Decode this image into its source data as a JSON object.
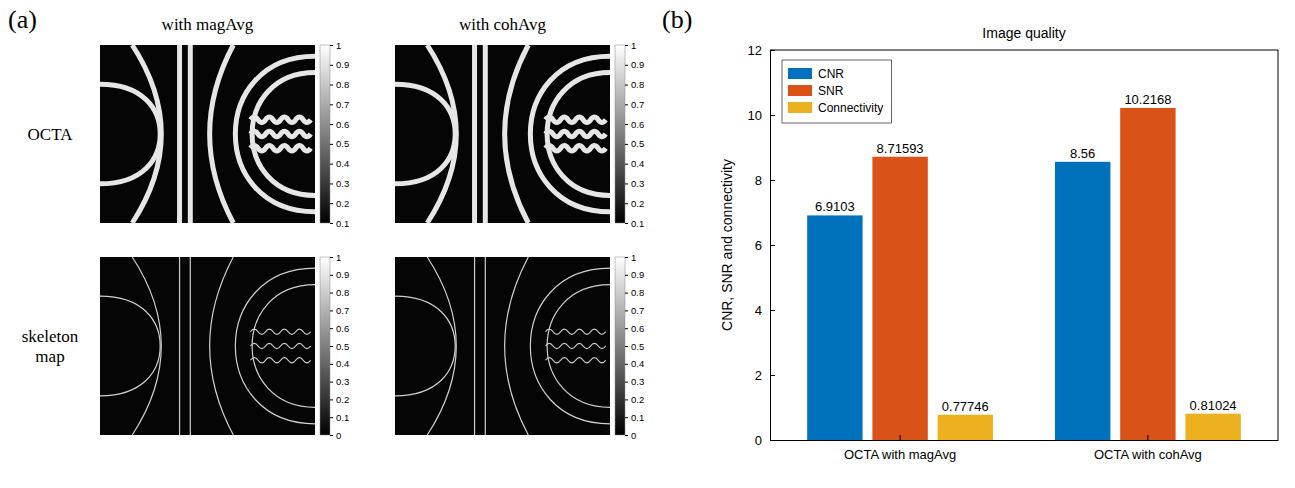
{
  "figure": {
    "panel_a": {
      "label": "(a)",
      "columns": [
        "with magAvg",
        "with cohAvg"
      ],
      "rows": [
        {
          "label": "OCTA",
          "colorbar": {
            "range": [
              0.1,
              1
            ],
            "ticks": [
              0.1,
              0.2,
              0.3,
              0.4,
              0.5,
              0.6,
              0.7,
              0.8,
              0.9,
              1
            ]
          }
        },
        {
          "label": "skeleton map",
          "colorbar": {
            "range": [
              0,
              1
            ],
            "ticks": [
              0,
              0.1,
              0.2,
              0.3,
              0.4,
              0.5,
              0.6,
              0.7,
              0.8,
              0.9,
              1
            ]
          }
        }
      ]
    },
    "panel_b": {
      "label": "(b)"
    }
  },
  "chart_data": {
    "type": "bar",
    "title": "Image quality",
    "y_label": "CNR, SNR and connectivity",
    "categories": [
      "OCTA with magAvg",
      "OCTA with cohAvg"
    ],
    "series": [
      {
        "name": "CNR",
        "color": "#0072bd",
        "values": [
          6.9103,
          8.56
        ]
      },
      {
        "name": "SNR",
        "color": "#d95319",
        "values": [
          8.71593,
          10.2168
        ]
      },
      {
        "name": "Connectivity",
        "color": "#edb120",
        "values": [
          0.77746,
          0.81024
        ]
      }
    ],
    "ylim": [
      0,
      12
    ],
    "yticks": [
      0,
      2,
      4,
      6,
      8,
      10,
      12
    ],
    "legend": "upper left",
    "data_labels": true
  }
}
